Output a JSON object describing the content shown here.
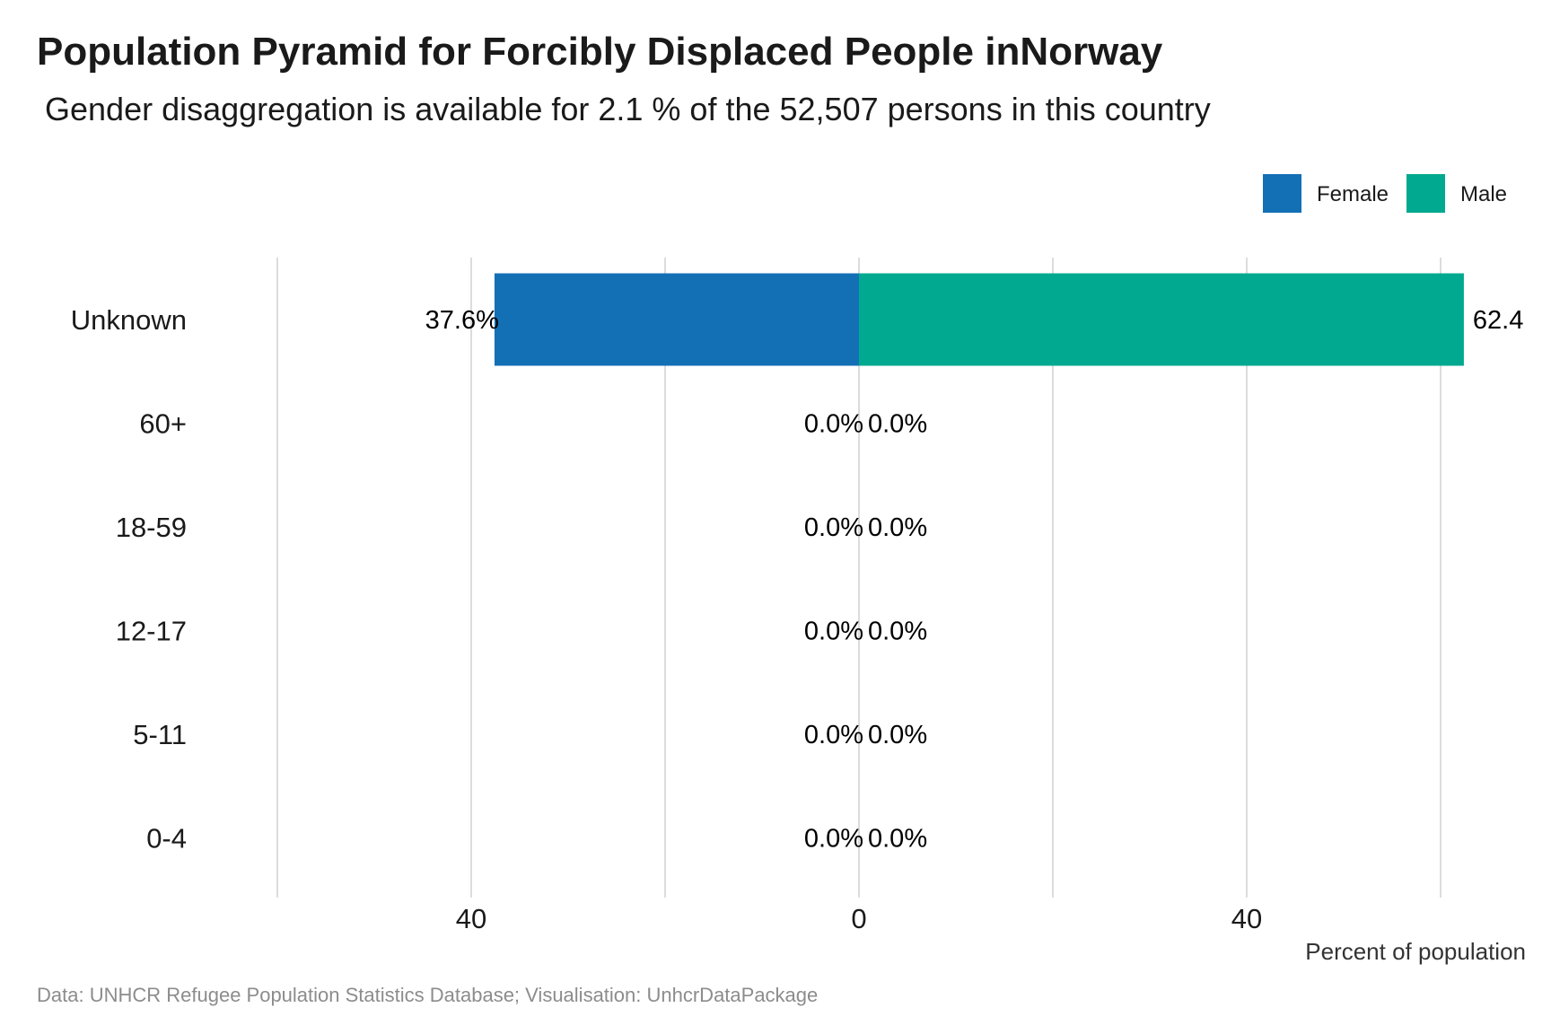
{
  "title": "Population Pyramid for Forcibly Displaced People inNorway",
  "subtitle": "Gender disaggregation is available for 2.1 % of the 52,507 persons in this country",
  "caption": "Data: UNHCR Refugee Population Statistics Database; Visualisation: UnhcrDataPackage",
  "legend": [
    {
      "label": "Female",
      "color": "#1470b5"
    },
    {
      "label": "Male",
      "color": "#00a98f"
    }
  ],
  "chart_data": {
    "type": "bar",
    "orientation": "horizontal-diverging",
    "categories": [
      "Unknown",
      "60+",
      "18-59",
      "12-17",
      "5-11",
      "0-4"
    ],
    "series": [
      {
        "name": "Female",
        "color": "#1470b5",
        "values": [
          37.6,
          0.0,
          0.0,
          0.0,
          0.0,
          0.0
        ],
        "labels": [
          "37.6%",
          "0.0%",
          "0.0%",
          "0.0%",
          "0.0%",
          "0.0%"
        ]
      },
      {
        "name": "Male",
        "color": "#00a98f",
        "values": [
          62.4,
          0.0,
          0.0,
          0.0,
          0.0,
          0.0
        ],
        "labels": [
          "62.4",
          "0.0%",
          "0.0%",
          "0.0%",
          "0.0%",
          "0.0%"
        ]
      }
    ],
    "xlabel": "Percent of population",
    "xlim": [
      -60,
      62
    ],
    "ticks": [
      {
        "value": -40,
        "label": "40"
      },
      {
        "value": 0,
        "label": "0"
      },
      {
        "value": 40,
        "label": "40"
      }
    ],
    "grid_values": [
      -60,
      -40,
      -20,
      0,
      20,
      40,
      60
    ],
    "grid": true,
    "legend_position": "top-right"
  }
}
